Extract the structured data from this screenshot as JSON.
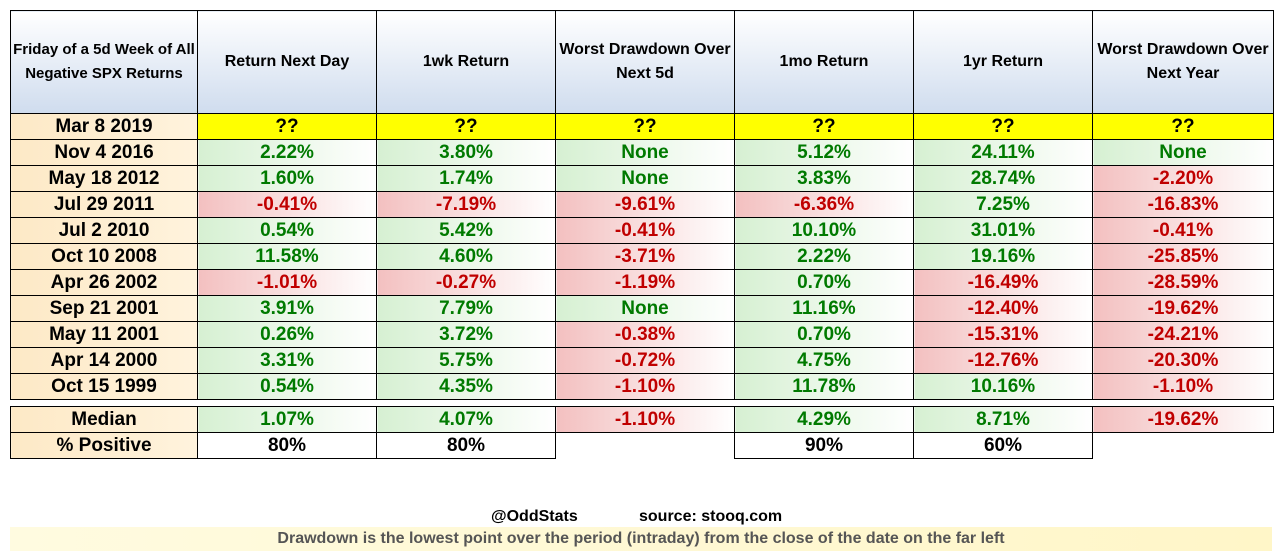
{
  "headers": [
    "Friday of a 5d Week of All Negative SPX Returns",
    "Return Next Day",
    "1wk Return",
    "Worst Drawdown Over Next 5d",
    "1mo Return",
    "1yr Return",
    "Worst Drawdown Over Next Year"
  ],
  "current": {
    "date": "Mar 8 2019",
    "values": [
      "??",
      "??",
      "??",
      "??",
      "??",
      "??"
    ]
  },
  "rows": [
    {
      "date": "Nov 4 2016",
      "values": [
        "2.22%",
        "3.80%",
        "None",
        "5.12%",
        "24.11%",
        "None"
      ]
    },
    {
      "date": "May 18 2012",
      "values": [
        "1.60%",
        "1.74%",
        "None",
        "3.83%",
        "28.74%",
        "-2.20%"
      ]
    },
    {
      "date": "Jul 29 2011",
      "values": [
        "-0.41%",
        "-7.19%",
        "-9.61%",
        "-6.36%",
        "7.25%",
        "-16.83%"
      ]
    },
    {
      "date": "Jul 2 2010",
      "values": [
        "0.54%",
        "5.42%",
        "-0.41%",
        "10.10%",
        "31.01%",
        "-0.41%"
      ]
    },
    {
      "date": "Oct 10 2008",
      "values": [
        "11.58%",
        "4.60%",
        "-3.71%",
        "2.22%",
        "19.16%",
        "-25.85%"
      ]
    },
    {
      "date": "Apr 26 2002",
      "values": [
        "-1.01%",
        "-0.27%",
        "-1.19%",
        "0.70%",
        "-16.49%",
        "-28.59%"
      ]
    },
    {
      "date": "Sep 21 2001",
      "values": [
        "3.91%",
        "7.79%",
        "None",
        "11.16%",
        "-12.40%",
        "-19.62%"
      ]
    },
    {
      "date": "May 11 2001",
      "values": [
        "0.26%",
        "3.72%",
        "-0.38%",
        "0.70%",
        "-15.31%",
        "-24.21%"
      ]
    },
    {
      "date": "Apr 14 2000",
      "values": [
        "3.31%",
        "5.75%",
        "-0.72%",
        "4.75%",
        "-12.76%",
        "-20.30%"
      ]
    },
    {
      "date": "Oct 15 1999",
      "values": [
        "0.54%",
        "4.35%",
        "-1.10%",
        "11.78%",
        "10.16%",
        "-1.10%"
      ]
    }
  ],
  "median": {
    "label": "Median",
    "values": [
      "1.07%",
      "4.07%",
      "-1.10%",
      "4.29%",
      "8.71%",
      "-19.62%"
    ]
  },
  "positive": {
    "label": "% Positive",
    "values": [
      "80%",
      "80%",
      "",
      "90%",
      "60%",
      ""
    ]
  },
  "credits": {
    "handle": "@OddStats",
    "source": "source: stooq.com"
  },
  "note": "Drawdown is the lowest point over the period (intraday) from the close of the date on the far left",
  "colors": {
    "positive": "#007a00",
    "negative": "#c00000",
    "highlight": "#ffff00",
    "header": "#cfdcee"
  }
}
